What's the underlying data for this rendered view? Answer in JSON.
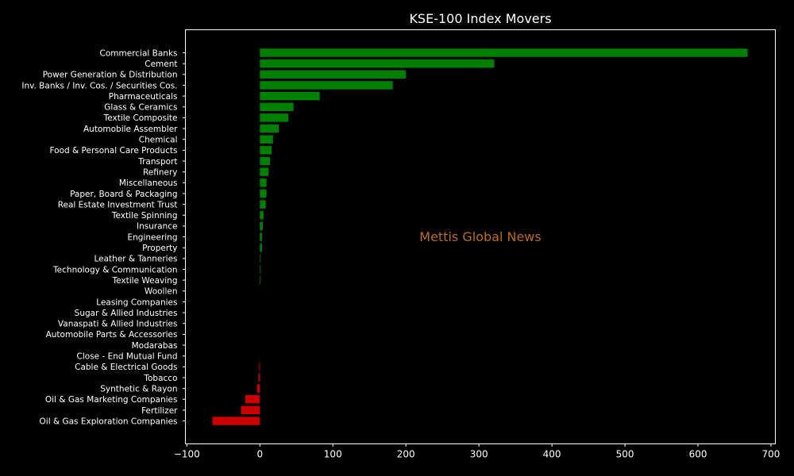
{
  "chart_data": {
    "type": "bar",
    "orientation": "horizontal",
    "title": "KSE-100 Index Movers",
    "xlabel": "",
    "ylabel": "",
    "xlim": [
      -102,
      706
    ],
    "xticks": [
      -100,
      0,
      100,
      200,
      300,
      400,
      500,
      600,
      700
    ],
    "grid": false,
    "watermark": "Mettis Global News",
    "colors": {
      "positive": "#008000",
      "negative": "#cc0000",
      "background": "#000000",
      "axis": "#ffffff"
    },
    "categories": [
      "Commercial Banks",
      "Cement",
      "Power Generation & Distribution",
      "Inv. Banks / Inv. Cos. / Securities Cos.",
      "Pharmaceuticals",
      "Glass & Ceramics",
      "Textile Composite",
      "Automobile Assembler",
      "Chemical",
      "Food & Personal Care Products",
      "Transport",
      "Refinery",
      "Miscellaneous",
      "Paper, Board & Packaging",
      "Real Estate Investment Trust",
      "Textile Spinning",
      "Insurance",
      "Engineering",
      "Property",
      "Leather & Tanneries",
      "Technology & Communication",
      "Textile Weaving",
      "Woollen",
      "Leasing Companies",
      "Sugar & Allied Industries",
      "Vanaspati & Allied Industries",
      "Automobile Parts & Accessories",
      "Modarabas",
      "Close - End Mutual Fund",
      "Cable & Electrical Goods",
      "Tobacco",
      "Synthetic & Rayon",
      "Oil & Gas Marketing Companies",
      "Fertilizer",
      "Oil & Gas Exploration Companies"
    ],
    "values": [
      668,
      321,
      200,
      182,
      82,
      46,
      39,
      26,
      18,
      16,
      14,
      12,
      9,
      9,
      8,
      5,
      4,
      3,
      3,
      1,
      1,
      1,
      0,
      0,
      0,
      0,
      0,
      0,
      0,
      -1,
      -2,
      -4,
      -20,
      -26,
      -65
    ]
  }
}
